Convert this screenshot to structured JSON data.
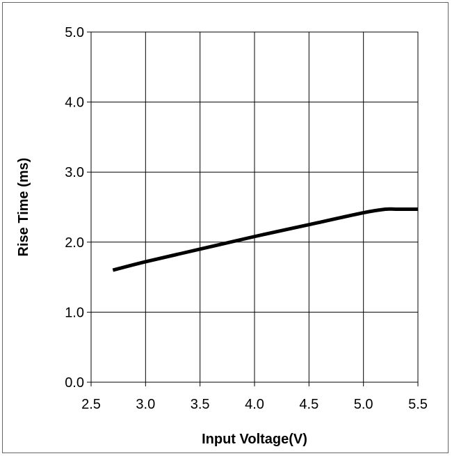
{
  "chart_data": {
    "type": "line",
    "title": "",
    "xlabel": "Input Voltage(V)",
    "ylabel": "Rise Time (ms)",
    "xlim": [
      2.5,
      5.5
    ],
    "ylim": [
      0.0,
      5.0
    ],
    "x_ticks": [
      "2.5",
      "3.0",
      "3.5",
      "4.0",
      "4.5",
      "5.0",
      "5.5"
    ],
    "y_ticks": [
      "0.0",
      "1.0",
      "2.0",
      "3.0",
      "4.0",
      "5.0"
    ],
    "grid": true,
    "legend": "none",
    "series": [
      {
        "color": "#000000",
        "x": [
          2.7,
          3.0,
          3.5,
          4.0,
          4.5,
          5.0,
          5.2,
          5.3,
          5.5
        ],
        "y": [
          1.6,
          1.72,
          1.9,
          2.08,
          2.25,
          2.42,
          2.47,
          2.47,
          2.47
        ]
      }
    ]
  }
}
